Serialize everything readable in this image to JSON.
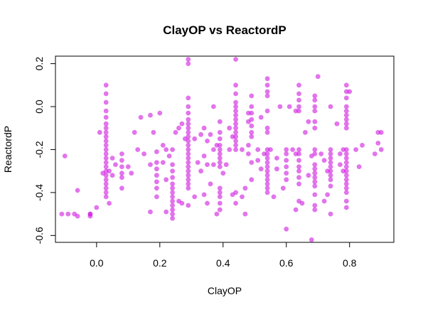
{
  "chart_data": {
    "type": "scatter",
    "title": "ClayOP vs ReactordP",
    "xlabel": "ClayOP",
    "ylabel": "ReactordP",
    "xlim": [
      -0.13,
      0.94
    ],
    "ylim": [
      -0.632,
      0.235
    ],
    "x_ticks": [
      0.0,
      0.2,
      0.4,
      0.6,
      0.8
    ],
    "x_tick_labels": [
      "0.0",
      "0.2",
      "0.4",
      "0.6",
      "0.8"
    ],
    "y_ticks": [
      -0.6,
      -0.4,
      -0.2,
      0.0,
      0.2
    ],
    "y_tick_labels": [
      "-0.6",
      "-0.4",
      "-0.2",
      "0.0",
      "0.2"
    ],
    "grid": false,
    "legend": "none",
    "point_color": "#d11fe0",
    "point_alpha": 0.62,
    "series": [
      {
        "points": [
          [
            -0.11,
            -0.5
          ],
          [
            -0.1,
            -0.23
          ],
          [
            -0.09,
            -0.5
          ],
          [
            -0.07,
            -0.5
          ],
          [
            -0.06,
            -0.39
          ],
          [
            -0.06,
            -0.51
          ],
          [
            -0.02,
            -0.51
          ],
          [
            -0.02,
            -0.5
          ],
          [
            -0.02,
            -0.5
          ],
          [
            0.0,
            -0.47
          ],
          [
            0.01,
            -0.12
          ],
          [
            0.02,
            -0.31
          ],
          [
            0.04,
            -0.45
          ],
          [
            0.03,
            0.1
          ],
          [
            0.03,
            0.06
          ],
          [
            0.03,
            0.02
          ],
          [
            0.03,
            -0.02
          ],
          [
            0.03,
            -0.05
          ],
          [
            0.03,
            -0.08
          ],
          [
            0.03,
            -0.1
          ],
          [
            0.03,
            -0.12
          ],
          [
            0.03,
            -0.14
          ],
          [
            0.03,
            -0.16
          ],
          [
            0.03,
            -0.18
          ],
          [
            0.03,
            -0.2
          ],
          [
            0.03,
            -0.22
          ],
          [
            0.03,
            -0.24
          ],
          [
            0.03,
            -0.26
          ],
          [
            0.03,
            -0.28
          ],
          [
            0.03,
            -0.3
          ],
          [
            0.03,
            -0.32
          ],
          [
            0.03,
            -0.34
          ],
          [
            0.03,
            -0.36
          ],
          [
            0.03,
            -0.38
          ],
          [
            0.03,
            -0.4
          ],
          [
            0.03,
            -0.42
          ],
          [
            0.04,
            -0.3
          ],
          [
            0.05,
            -0.32
          ],
          [
            0.05,
            -0.24
          ],
          [
            0.06,
            -0.27
          ],
          [
            0.08,
            -0.22
          ],
          [
            0.08,
            -0.25
          ],
          [
            0.08,
            -0.28
          ],
          [
            0.08,
            -0.31
          ],
          [
            0.08,
            -0.33
          ],
          [
            0.08,
            -0.38
          ],
          [
            0.1,
            -0.28
          ],
          [
            0.11,
            -0.31
          ],
          [
            0.12,
            -0.12
          ],
          [
            0.13,
            -0.2
          ],
          [
            0.14,
            -0.05
          ],
          [
            0.15,
            -0.22
          ],
          [
            0.17,
            -0.27
          ],
          [
            0.17,
            -0.04
          ],
          [
            0.17,
            -0.49
          ],
          [
            0.18,
            -0.12
          ],
          [
            0.19,
            -0.21
          ],
          [
            0.19,
            -0.26
          ],
          [
            0.19,
            -0.29
          ],
          [
            0.19,
            -0.32
          ],
          [
            0.19,
            -0.35
          ],
          [
            0.19,
            -0.38
          ],
          [
            0.19,
            -0.42
          ],
          [
            0.2,
            -0.03
          ],
          [
            0.21,
            -0.18
          ],
          [
            0.21,
            -0.26
          ],
          [
            0.22,
            -0.34
          ],
          [
            0.22,
            -0.49
          ],
          [
            0.22,
            -0.2
          ],
          [
            0.23,
            -0.23
          ],
          [
            0.24,
            -0.2
          ],
          [
            0.24,
            -0.27
          ],
          [
            0.24,
            -0.3
          ],
          [
            0.24,
            -0.33
          ],
          [
            0.24,
            -0.36
          ],
          [
            0.24,
            -0.38
          ],
          [
            0.24,
            -0.4
          ],
          [
            0.24,
            -0.42
          ],
          [
            0.24,
            -0.44
          ],
          [
            0.24,
            -0.46
          ],
          [
            0.24,
            -0.48
          ],
          [
            0.24,
            -0.5
          ],
          [
            0.24,
            -0.52
          ],
          [
            0.25,
            -0.12
          ],
          [
            0.26,
            -0.1
          ],
          [
            0.26,
            -0.44
          ],
          [
            0.27,
            -0.08
          ],
          [
            0.27,
            -0.45
          ],
          [
            0.28,
            -0.15
          ],
          [
            0.29,
            0.04
          ],
          [
            0.29,
            0.0
          ],
          [
            0.29,
            -0.03
          ],
          [
            0.29,
            -0.06
          ],
          [
            0.29,
            -0.08
          ],
          [
            0.29,
            -0.1
          ],
          [
            0.29,
            -0.12
          ],
          [
            0.29,
            -0.14
          ],
          [
            0.29,
            -0.16
          ],
          [
            0.29,
            -0.18
          ],
          [
            0.29,
            -0.2
          ],
          [
            0.29,
            -0.22
          ],
          [
            0.29,
            -0.24
          ],
          [
            0.29,
            -0.26
          ],
          [
            0.29,
            -0.28
          ],
          [
            0.29,
            -0.3
          ],
          [
            0.29,
            -0.32
          ],
          [
            0.29,
            -0.34
          ],
          [
            0.29,
            -0.36
          ],
          [
            0.29,
            -0.38
          ],
          [
            0.29,
            0.22
          ],
          [
            0.29,
            0.2
          ],
          [
            0.29,
            -0.46
          ],
          [
            0.31,
            -0.15
          ],
          [
            0.31,
            -0.42
          ],
          [
            0.32,
            -0.26
          ],
          [
            0.33,
            -0.13
          ],
          [
            0.33,
            -0.3
          ],
          [
            0.34,
            -0.1
          ],
          [
            0.34,
            -0.23
          ],
          [
            0.34,
            -0.41
          ],
          [
            0.35,
            -0.27
          ],
          [
            0.35,
            -0.16
          ],
          [
            0.35,
            -0.45
          ],
          [
            0.36,
            -0.36
          ],
          [
            0.36,
            -0.13
          ],
          [
            0.37,
            0.0
          ],
          [
            0.37,
            -0.2
          ],
          [
            0.37,
            -0.27
          ],
          [
            0.38,
            -0.5
          ],
          [
            0.38,
            -0.18
          ],
          [
            0.39,
            -0.07
          ],
          [
            0.39,
            -0.12
          ],
          [
            0.39,
            -0.15
          ],
          [
            0.39,
            -0.18
          ],
          [
            0.39,
            -0.2
          ],
          [
            0.39,
            -0.22
          ],
          [
            0.39,
            -0.24
          ],
          [
            0.39,
            -0.26
          ],
          [
            0.39,
            -0.28
          ],
          [
            0.39,
            -0.38
          ],
          [
            0.39,
            -0.4
          ],
          [
            0.39,
            -0.42
          ],
          [
            0.39,
            -0.45
          ],
          [
            0.39,
            -0.48
          ],
          [
            0.4,
            -0.31
          ],
          [
            0.41,
            -0.27
          ],
          [
            0.42,
            -0.2
          ],
          [
            0.42,
            -0.1
          ],
          [
            0.43,
            -0.41
          ],
          [
            0.43,
            -0.14
          ],
          [
            0.44,
            0.22
          ],
          [
            0.44,
            0.1
          ],
          [
            0.44,
            0.06
          ],
          [
            0.44,
            0.02
          ],
          [
            0.44,
            0.0
          ],
          [
            0.44,
            -0.02
          ],
          [
            0.44,
            -0.04
          ],
          [
            0.44,
            -0.06
          ],
          [
            0.44,
            -0.08
          ],
          [
            0.44,
            -0.1
          ],
          [
            0.44,
            -0.12
          ],
          [
            0.44,
            -0.14
          ],
          [
            0.44,
            -0.16
          ],
          [
            0.44,
            -0.18
          ],
          [
            0.44,
            -0.2
          ],
          [
            0.44,
            -0.4
          ],
          [
            0.44,
            -0.45
          ],
          [
            0.46,
            -0.2
          ],
          [
            0.46,
            -0.42
          ],
          [
            0.47,
            -0.5
          ],
          [
            0.47,
            -0.38
          ],
          [
            0.48,
            -0.22
          ],
          [
            0.48,
            -0.18
          ],
          [
            0.48,
            -0.03
          ],
          [
            0.48,
            -0.07
          ],
          [
            0.49,
            0.05
          ],
          [
            0.49,
            0.0
          ],
          [
            0.49,
            -0.03
          ],
          [
            0.49,
            -0.06
          ],
          [
            0.49,
            -0.09
          ],
          [
            0.49,
            -0.12
          ],
          [
            0.49,
            -0.14
          ],
          [
            0.49,
            -0.26
          ],
          [
            0.49,
            -0.34
          ],
          [
            0.51,
            -0.2
          ],
          [
            0.51,
            -0.25
          ],
          [
            0.52,
            -0.05
          ],
          [
            0.52,
            -0.29
          ],
          [
            0.53,
            -0.22
          ],
          [
            0.54,
            0.13
          ],
          [
            0.54,
            0.1
          ],
          [
            0.54,
            0.07
          ],
          [
            0.54,
            0.05
          ],
          [
            0.54,
            -0.02
          ],
          [
            0.54,
            -0.1
          ],
          [
            0.54,
            -0.12
          ],
          [
            0.54,
            -0.2
          ],
          [
            0.54,
            -0.22
          ],
          [
            0.54,
            -0.24
          ],
          [
            0.54,
            -0.26
          ],
          [
            0.54,
            -0.28
          ],
          [
            0.54,
            -0.3
          ],
          [
            0.54,
            -0.32
          ],
          [
            0.54,
            -0.34
          ],
          [
            0.54,
            -0.36
          ],
          [
            0.54,
            -0.38
          ],
          [
            0.54,
            -0.4
          ],
          [
            0.55,
            -0.2
          ],
          [
            0.56,
            -0.42
          ],
          [
            0.57,
            -0.29
          ],
          [
            0.57,
            -0.24
          ],
          [
            0.58,
            0.0
          ],
          [
            0.59,
            -0.38
          ],
          [
            0.6,
            -0.2
          ],
          [
            0.6,
            -0.22
          ],
          [
            0.6,
            -0.25
          ],
          [
            0.6,
            -0.28
          ],
          [
            0.6,
            -0.31
          ],
          [
            0.6,
            -0.34
          ],
          [
            0.6,
            -0.57
          ],
          [
            0.61,
            0.0
          ],
          [
            0.62,
            -0.2
          ],
          [
            0.63,
            -0.22
          ],
          [
            0.63,
            -0.48
          ],
          [
            0.63,
            -0.02
          ],
          [
            0.64,
            0.1
          ],
          [
            0.64,
            0.06
          ],
          [
            0.64,
            0.03
          ],
          [
            0.64,
            0.0
          ],
          [
            0.64,
            -0.02
          ],
          [
            0.64,
            -0.2
          ],
          [
            0.64,
            -0.22
          ],
          [
            0.64,
            -0.25
          ],
          [
            0.64,
            -0.28
          ],
          [
            0.64,
            -0.3
          ],
          [
            0.64,
            -0.33
          ],
          [
            0.64,
            -0.36
          ],
          [
            0.64,
            -0.44
          ],
          [
            0.65,
            -0.45
          ],
          [
            0.66,
            -0.12
          ],
          [
            0.67,
            -0.07
          ],
          [
            0.67,
            -0.32
          ],
          [
            0.68,
            -0.62
          ],
          [
            0.68,
            -0.23
          ],
          [
            0.69,
            0.05
          ],
          [
            0.69,
            0.03
          ],
          [
            0.69,
            0.0
          ],
          [
            0.69,
            -0.02
          ],
          [
            0.69,
            -0.07
          ],
          [
            0.69,
            -0.1
          ],
          [
            0.69,
            -0.2
          ],
          [
            0.69,
            -0.22
          ],
          [
            0.69,
            -0.27
          ],
          [
            0.69,
            -0.29
          ],
          [
            0.69,
            -0.31
          ],
          [
            0.69,
            -0.33
          ],
          [
            0.69,
            -0.35
          ],
          [
            0.69,
            -0.37
          ],
          [
            0.69,
            -0.41
          ],
          [
            0.69,
            -0.46
          ],
          [
            0.69,
            -0.48
          ],
          [
            0.7,
            0.14
          ],
          [
            0.71,
            -0.22
          ],
          [
            0.72,
            -0.25
          ],
          [
            0.72,
            -0.44
          ],
          [
            0.73,
            -0.3
          ],
          [
            0.73,
            -0.41
          ],
          [
            0.74,
            -0.2
          ],
          [
            0.74,
            -0.22
          ],
          [
            0.74,
            -0.24
          ],
          [
            0.74,
            -0.26
          ],
          [
            0.74,
            -0.28
          ],
          [
            0.74,
            -0.3
          ],
          [
            0.74,
            -0.32
          ],
          [
            0.74,
            -0.34
          ],
          [
            0.74,
            -0.37
          ],
          [
            0.74,
            0.0
          ],
          [
            0.74,
            -0.5
          ],
          [
            0.76,
            -0.08
          ],
          [
            0.77,
            -0.22
          ],
          [
            0.77,
            -0.27
          ],
          [
            0.78,
            -0.2
          ],
          [
            0.78,
            -0.3
          ],
          [
            0.79,
            -0.08
          ],
          [
            0.79,
            0.1
          ],
          [
            0.79,
            0.07
          ],
          [
            0.79,
            0.04
          ],
          [
            0.79,
            0.0
          ],
          [
            0.79,
            -0.02
          ],
          [
            0.79,
            -0.04
          ],
          [
            0.79,
            -0.06
          ],
          [
            0.79,
            -0.1
          ],
          [
            0.79,
            -0.2
          ],
          [
            0.79,
            -0.22
          ],
          [
            0.79,
            -0.24
          ],
          [
            0.79,
            -0.26
          ],
          [
            0.79,
            -0.28
          ],
          [
            0.79,
            -0.3
          ],
          [
            0.79,
            -0.32
          ],
          [
            0.79,
            -0.34
          ],
          [
            0.79,
            -0.36
          ],
          [
            0.79,
            -0.38
          ],
          [
            0.79,
            -0.4
          ],
          [
            0.79,
            -0.44
          ],
          [
            0.79,
            -0.47
          ],
          [
            0.8,
            0.07
          ],
          [
            0.82,
            -0.2
          ],
          [
            0.83,
            -0.28
          ],
          [
            0.84,
            -0.18
          ],
          [
            0.88,
            -0.22
          ],
          [
            0.89,
            -0.17
          ],
          [
            0.89,
            -0.12
          ],
          [
            0.9,
            -0.12
          ],
          [
            0.9,
            -0.2
          ]
        ]
      }
    ]
  }
}
